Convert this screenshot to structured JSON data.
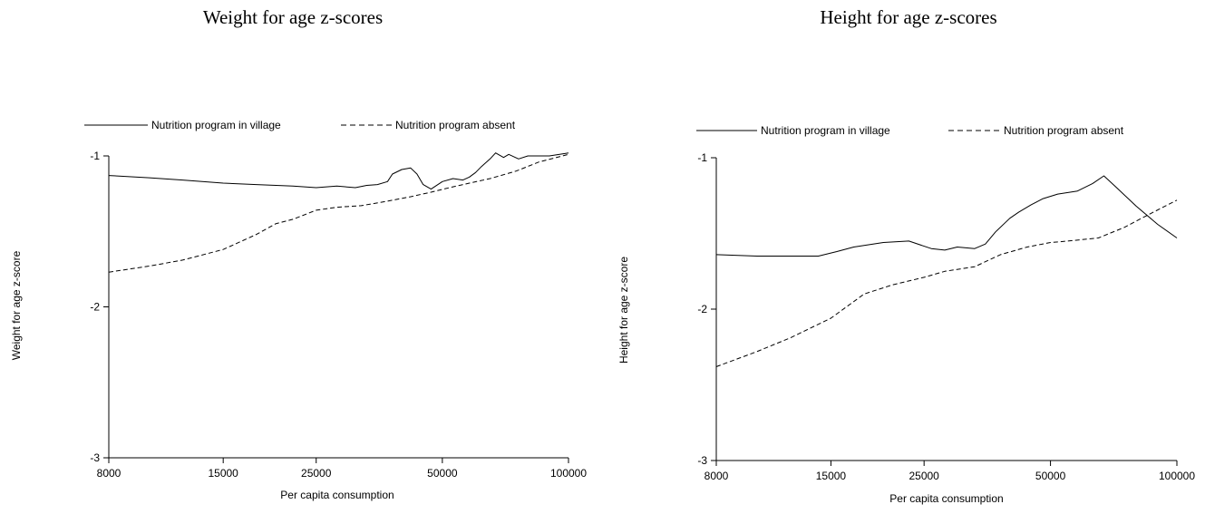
{
  "chart_data": [
    {
      "type": "line",
      "title": "Weight for age z-scores",
      "xlabel": "Per capita consumption",
      "ylabel": "Weight for age z-score",
      "x_scale": "log",
      "xlim": [
        8000,
        100000
      ],
      "ylim": [
        -3,
        -1
      ],
      "xticks": [
        8000,
        15000,
        25000,
        50000,
        100000
      ],
      "xtick_labels": [
        "8000",
        "15000",
        "25000",
        "50000",
        "100000"
      ],
      "yticks": [
        -1,
        -2,
        -3
      ],
      "ytick_labels": [
        "-1",
        "-2",
        "-3"
      ],
      "grid": false,
      "legend_position": "top",
      "series": [
        {
          "name": "Nutrition program in village",
          "style": "solid",
          "points": [
            [
              8000,
              -1.13
            ],
            [
              10000,
              -1.145
            ],
            [
              12000,
              -1.16
            ],
            [
              15000,
              -1.18
            ],
            [
              18000,
              -1.19
            ],
            [
              22000,
              -1.2
            ],
            [
              25000,
              -1.21
            ],
            [
              28000,
              -1.2
            ],
            [
              31000,
              -1.21
            ],
            [
              33000,
              -1.195
            ],
            [
              35000,
              -1.19
            ],
            [
              37000,
              -1.17
            ],
            [
              38000,
              -1.12
            ],
            [
              40000,
              -1.09
            ],
            [
              42000,
              -1.08
            ],
            [
              43500,
              -1.12
            ],
            [
              45000,
              -1.19
            ],
            [
              47000,
              -1.22
            ],
            [
              50000,
              -1.17
            ],
            [
              53000,
              -1.15
            ],
            [
              56000,
              -1.16
            ],
            [
              58000,
              -1.14
            ],
            [
              60000,
              -1.11
            ],
            [
              62000,
              -1.07
            ],
            [
              65000,
              -1.02
            ],
            [
              67000,
              -0.98
            ],
            [
              70000,
              -1.01
            ],
            [
              72000,
              -0.99
            ],
            [
              76000,
              -1.02
            ],
            [
              80000,
              -1.0
            ],
            [
              90000,
              -1.0
            ],
            [
              100000,
              -0.98
            ]
          ]
        },
        {
          "name": "Nutrition program absent",
          "style": "dashed",
          "points": [
            [
              8000,
              -1.77
            ],
            [
              10000,
              -1.73
            ],
            [
              12000,
              -1.69
            ],
            [
              15000,
              -1.62
            ],
            [
              18000,
              -1.52
            ],
            [
              20000,
              -1.45
            ],
            [
              22000,
              -1.42
            ],
            [
              25000,
              -1.36
            ],
            [
              28000,
              -1.34
            ],
            [
              32000,
              -1.33
            ],
            [
              37000,
              -1.3
            ],
            [
              42000,
              -1.27
            ],
            [
              47000,
              -1.24
            ],
            [
              52000,
              -1.21
            ],
            [
              58000,
              -1.18
            ],
            [
              65000,
              -1.15
            ],
            [
              75000,
              -1.1
            ],
            [
              85000,
              -1.04
            ],
            [
              100000,
              -0.99
            ]
          ]
        }
      ]
    },
    {
      "type": "line",
      "title": "Height for age z-scores",
      "xlabel": "Per capita consumption",
      "ylabel": "Height for age z-score",
      "x_scale": "log",
      "xlim": [
        8000,
        100000
      ],
      "ylim": [
        -3,
        -1
      ],
      "xticks": [
        8000,
        15000,
        25000,
        50000,
        100000
      ],
      "xtick_labels": [
        "8000",
        "15000",
        "25000",
        "50000",
        "100000"
      ],
      "yticks": [
        -1,
        -2,
        -3
      ],
      "ytick_labels": [
        "-1",
        "-2",
        "-3"
      ],
      "grid": false,
      "legend_position": "top",
      "series": [
        {
          "name": "Nutrition program in village",
          "style": "solid",
          "points": [
            [
              8000,
              -1.64
            ],
            [
              10000,
              -1.65
            ],
            [
              12000,
              -1.65
            ],
            [
              14000,
              -1.65
            ],
            [
              15500,
              -1.62
            ],
            [
              17000,
              -1.59
            ],
            [
              20000,
              -1.56
            ],
            [
              23000,
              -1.55
            ],
            [
              26000,
              -1.6
            ],
            [
              28000,
              -1.61
            ],
            [
              30000,
              -1.59
            ],
            [
              33000,
              -1.6
            ],
            [
              35000,
              -1.57
            ],
            [
              37000,
              -1.49
            ],
            [
              40000,
              -1.4
            ],
            [
              42000,
              -1.36
            ],
            [
              45000,
              -1.31
            ],
            [
              48000,
              -1.27
            ],
            [
              52000,
              -1.24
            ],
            [
              58000,
              -1.22
            ],
            [
              63000,
              -1.17
            ],
            [
              67000,
              -1.12
            ],
            [
              72000,
              -1.2
            ],
            [
              80000,
              -1.32
            ],
            [
              90000,
              -1.44
            ],
            [
              100000,
              -1.53
            ]
          ]
        },
        {
          "name": "Nutrition program absent",
          "style": "dashed",
          "points": [
            [
              8000,
              -2.38
            ],
            [
              10000,
              -2.28
            ],
            [
              12000,
              -2.19
            ],
            [
              15000,
              -2.06
            ],
            [
              18000,
              -1.9
            ],
            [
              21000,
              -1.84
            ],
            [
              25000,
              -1.79
            ],
            [
              28000,
              -1.75
            ],
            [
              33000,
              -1.72
            ],
            [
              38000,
              -1.64
            ],
            [
              44000,
              -1.59
            ],
            [
              50000,
              -1.56
            ],
            [
              55000,
              -1.55
            ],
            [
              65000,
              -1.53
            ],
            [
              75000,
              -1.46
            ],
            [
              85000,
              -1.38
            ],
            [
              100000,
              -1.28
            ]
          ]
        }
      ]
    }
  ]
}
